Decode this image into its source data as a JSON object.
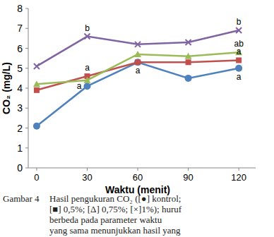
{
  "chart_data": {
    "type": "line",
    "x_label": "Waktu (menit)",
    "y_label": "CO₂ (mg/L)",
    "x": [
      0,
      30,
      60,
      90,
      120
    ],
    "xlim": [
      -5,
      130
    ],
    "xticks": [
      0,
      30,
      60,
      90,
      120
    ],
    "ylim": [
      0,
      8
    ],
    "yticks": [
      0,
      1,
      2,
      3,
      4,
      5,
      6,
      7,
      8
    ],
    "grid": false,
    "series": [
      {
        "color": "#4f81bd",
        "marker": "circle",
        "values": [
          2.1,
          4.1,
          5.3,
          4.5,
          5.0
        ]
      },
      {
        "color": "#c0504d",
        "marker": "square",
        "values": [
          3.9,
          4.6,
          5.3,
          5.3,
          5.4
        ]
      },
      {
        "color": "#9bbb59",
        "marker": "triangle",
        "values": [
          4.2,
          4.4,
          5.7,
          5.6,
          5.8
        ]
      },
      {
        "color": "#8064a2",
        "marker": "x",
        "values": [
          5.1,
          6.6,
          6.2,
          6.3,
          6.9
        ]
      }
    ],
    "annotations": [
      {
        "text": "b",
        "series": 3,
        "index": 1,
        "position": "above"
      },
      {
        "text": "a",
        "series": 1,
        "index": 1,
        "position": "above"
      },
      {
        "text": "a",
        "series": 0,
        "index": 1,
        "position": "left"
      },
      {
        "text": "a",
        "series": 0,
        "index": 2,
        "position": "below"
      },
      {
        "text": "b",
        "series": 3,
        "index": 4,
        "position": "above"
      },
      {
        "text": "ab",
        "series": 2,
        "index": 4,
        "position": "above"
      },
      {
        "text": "a",
        "series": 1,
        "index": 4,
        "position": "above"
      },
      {
        "text": "a",
        "series": 0,
        "index": 4,
        "position": "below"
      }
    ],
    "caption": {
      "label": "Gambar 4",
      "lines": [
        "Hasil pengukuran CO₂ ([●] kontrol;",
        "[■] 0,5%; [Δ] 0,75%; [×]1%); huruf",
        "berbeda pada parameter waktu",
        "yang sama menunjukkan hasil yang"
      ]
    }
  }
}
